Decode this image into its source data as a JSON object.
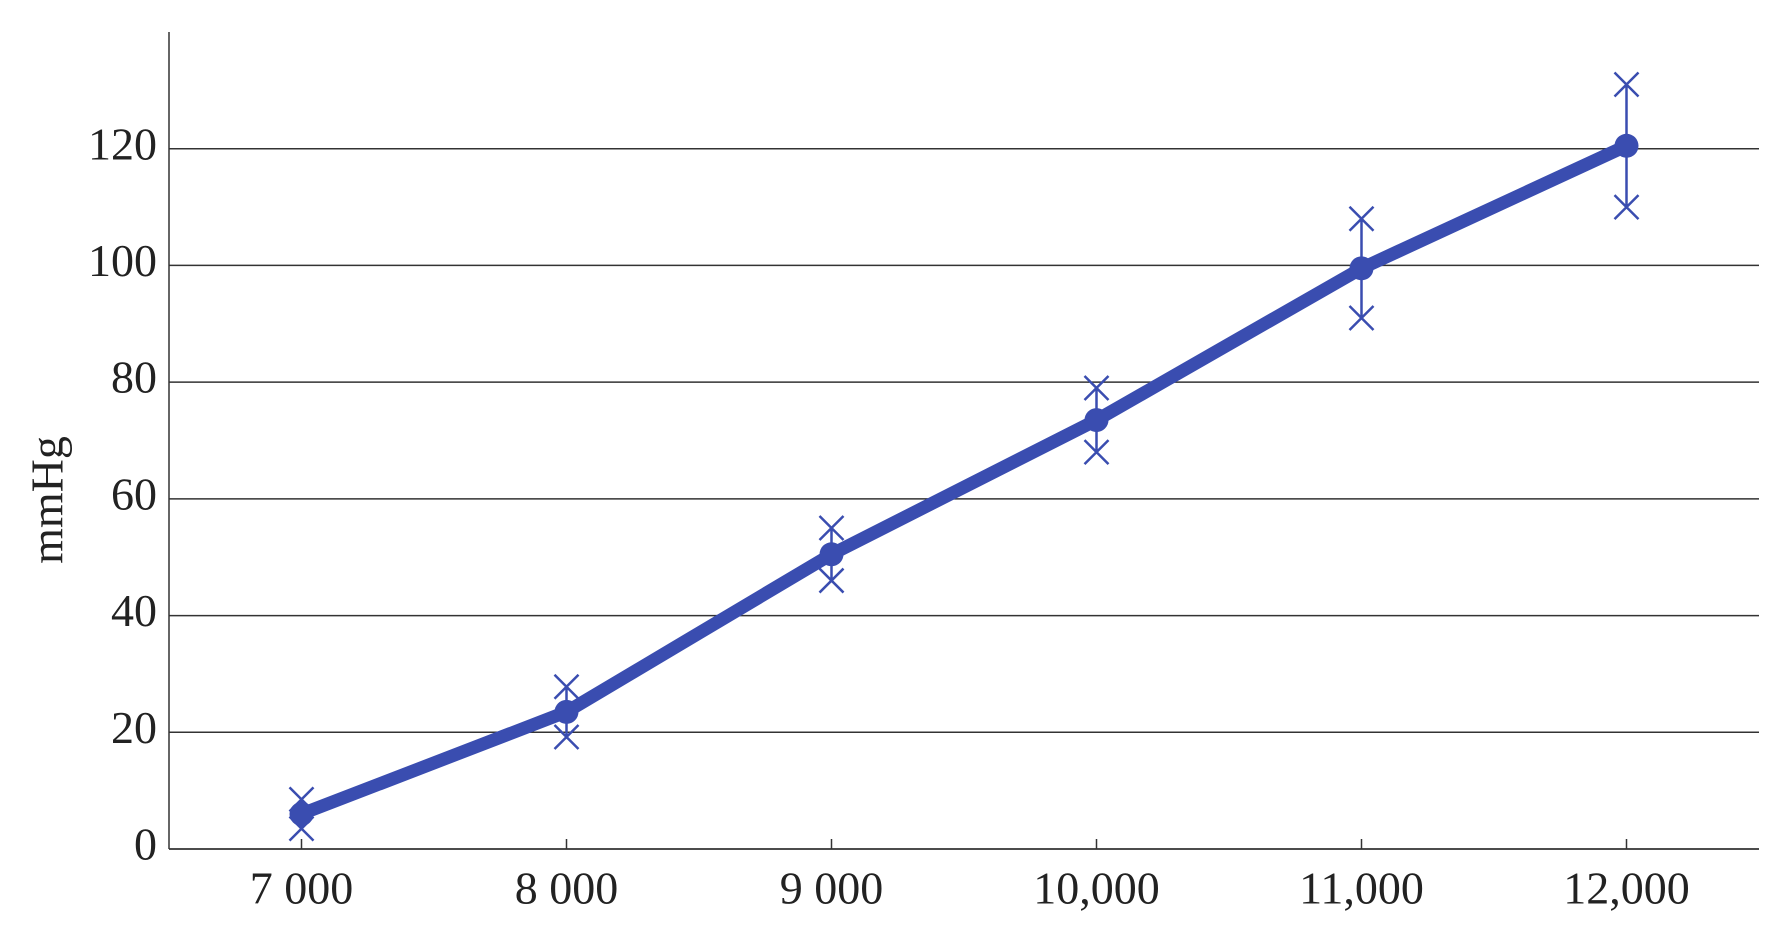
{
  "chart_data": {
    "type": "line",
    "ylabel": "mmHg",
    "x": [
      7000,
      8000,
      9000,
      10000,
      11000,
      12000
    ],
    "values": [
      6,
      23.5,
      50.5,
      73.5,
      99.5,
      120.5
    ],
    "errors": [
      2.5,
      4.3,
      4.5,
      5.5,
      8.5,
      10.5
    ],
    "color": "#3a4db0",
    "xlim": [
      6500,
      12500
    ],
    "xticks": [
      {
        "value": 7000,
        "label": "7 000"
      },
      {
        "value": 8000,
        "label": "8 000"
      },
      {
        "value": 9000,
        "label": "9 000"
      },
      {
        "value": 10000,
        "label": "10,000"
      },
      {
        "value": 11000,
        "label": "11,000"
      },
      {
        "value": 12000,
        "label": "12,000"
      }
    ],
    "ylim": [
      0,
      140
    ],
    "yticks": [
      0,
      20,
      40,
      60,
      80,
      100,
      120
    ],
    "grid": true
  }
}
